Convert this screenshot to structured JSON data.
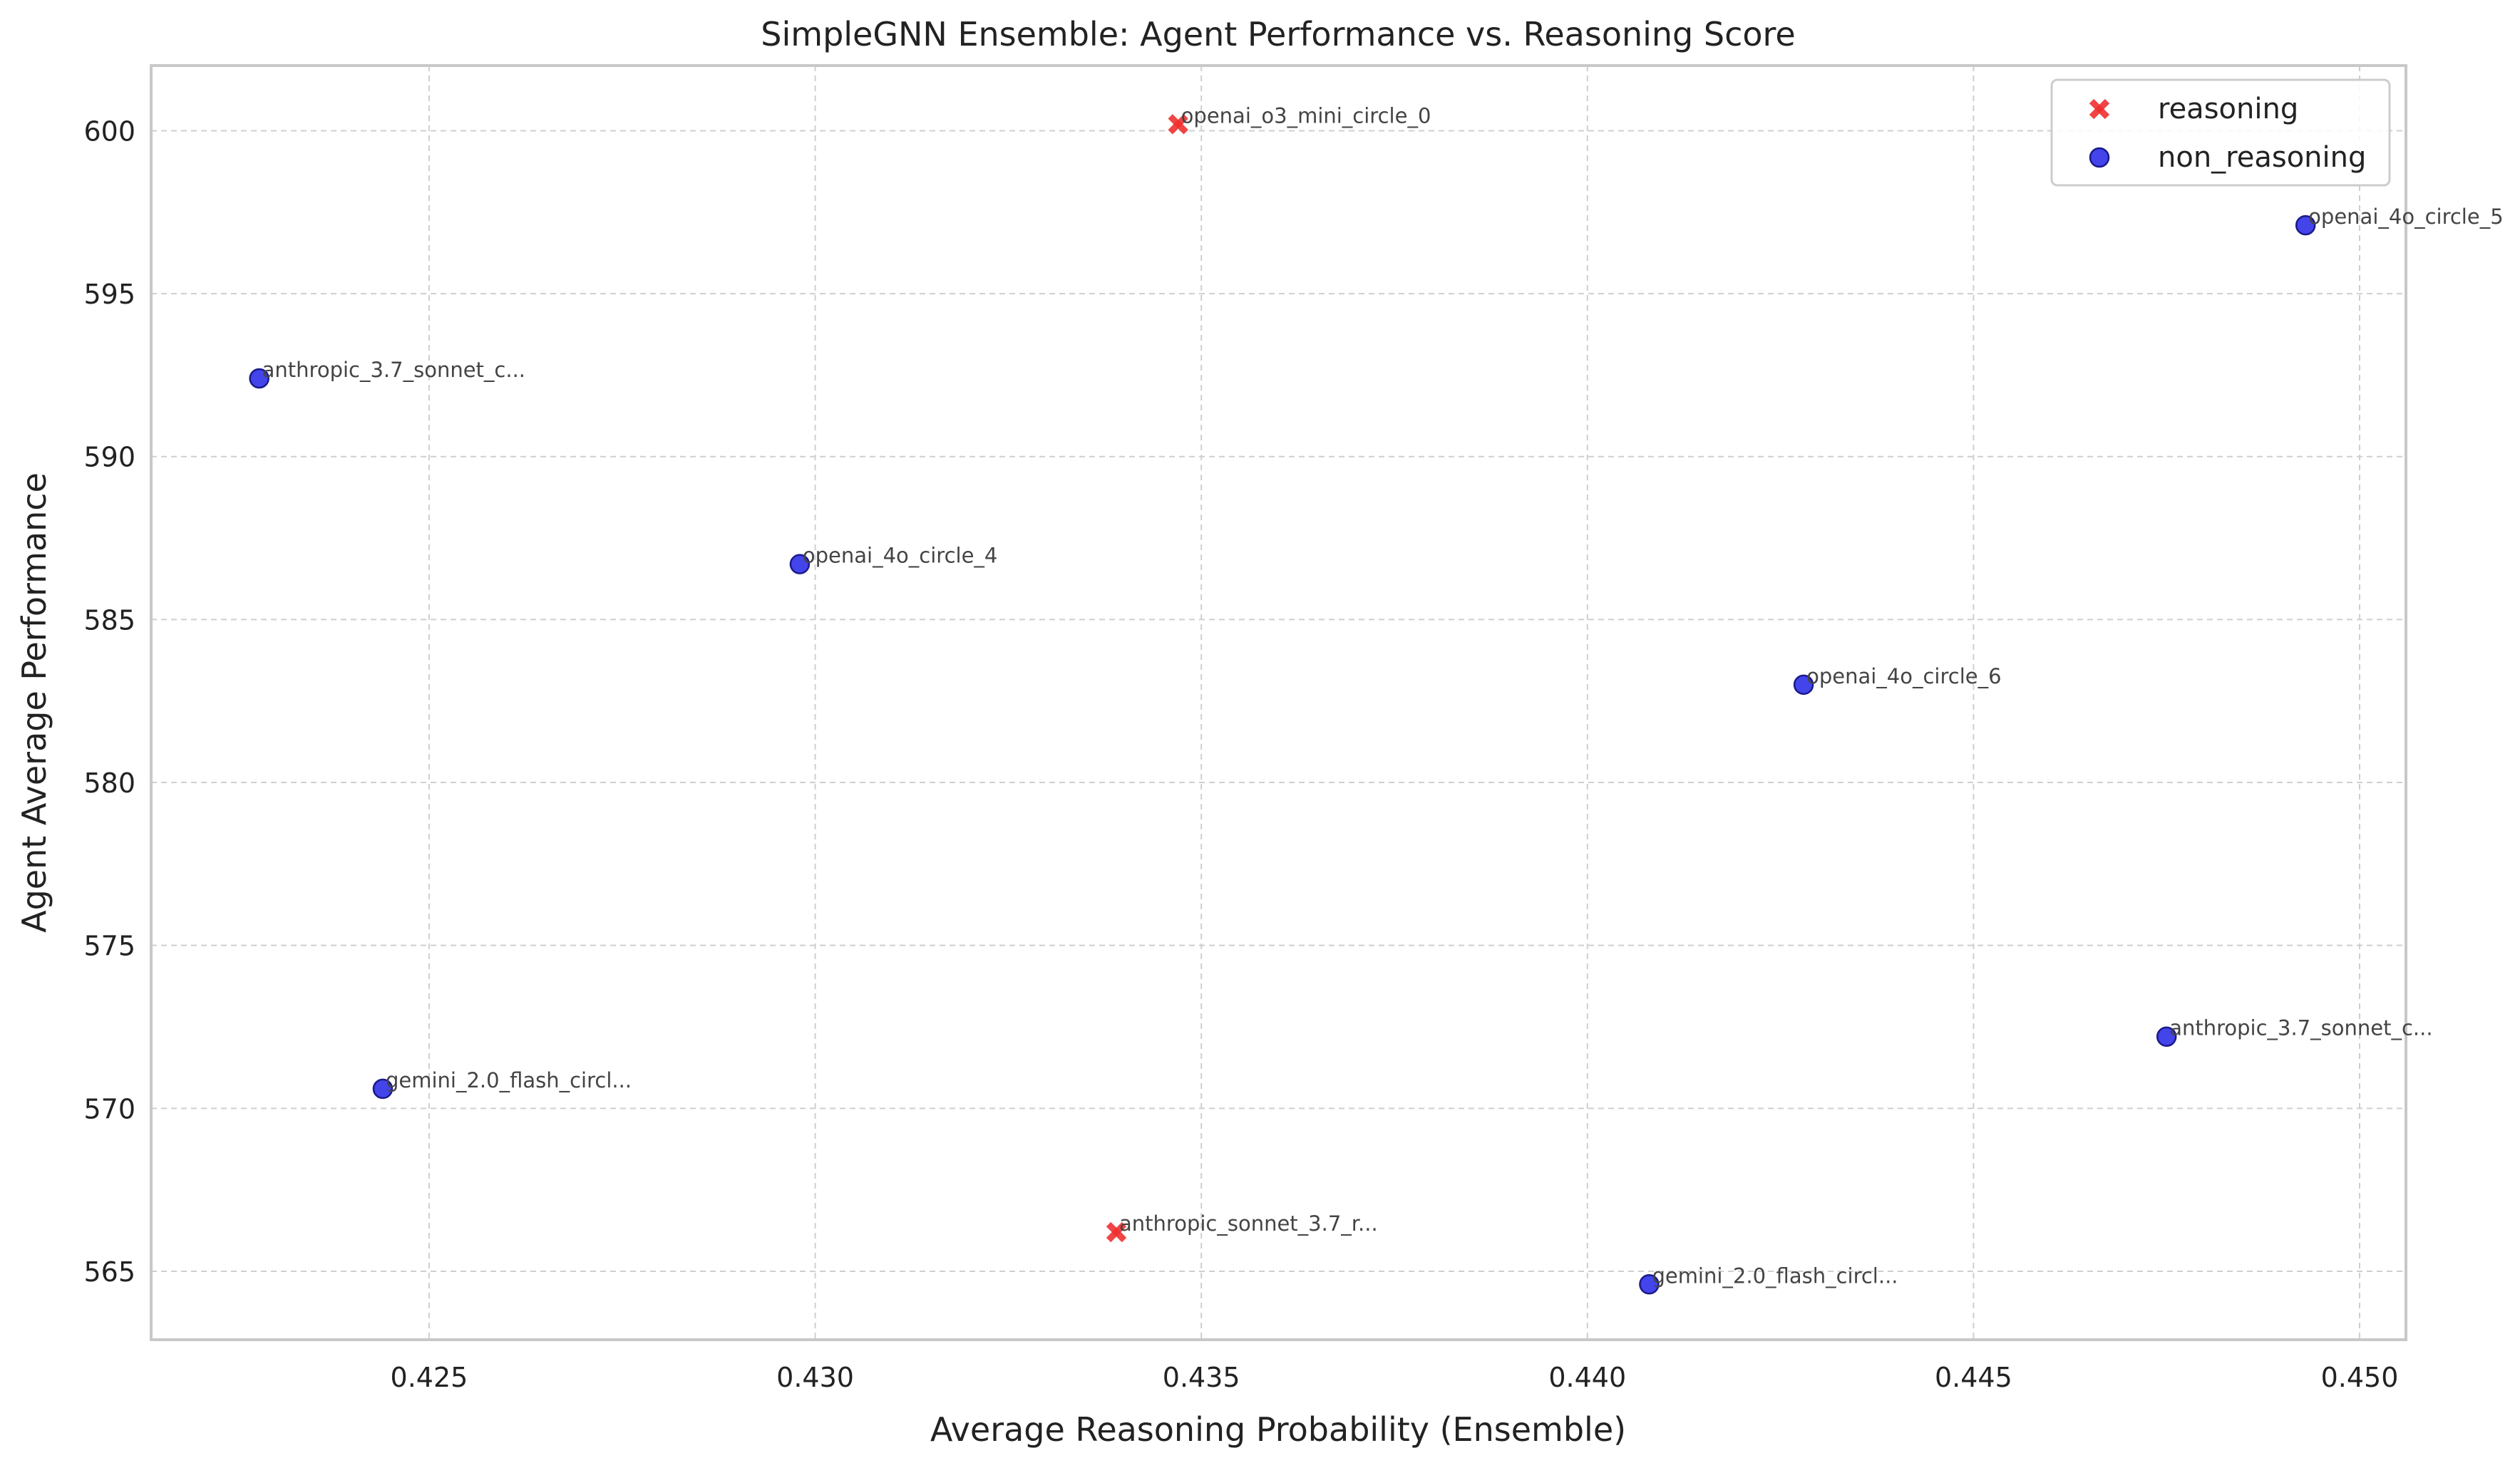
{
  "chart_data": {
    "type": "scatter",
    "title": "SimpleGNN Ensemble: Agent Performance vs. Reasoning Score",
    "xlabel": "Average Reasoning Probability (Ensemble)",
    "ylabel": "Agent Average Performance",
    "xlim": [
      0.4214,
      0.4506
    ],
    "ylim": [
      562.9,
      602.0
    ],
    "xticks": [
      0.425,
      0.43,
      0.435,
      0.44,
      0.445,
      0.45
    ],
    "xtick_labels": [
      "0.425",
      "0.430",
      "0.435",
      "0.440",
      "0.445",
      "0.450"
    ],
    "yticks": [
      565,
      570,
      575,
      580,
      585,
      590,
      595,
      600
    ],
    "ytick_labels": [
      "565",
      "570",
      "575",
      "580",
      "585",
      "590",
      "595",
      "600"
    ],
    "grid": true,
    "legend_position": "top-right",
    "series": [
      {
        "name": "reasoning",
        "marker": "x",
        "color": "#f03030",
        "points": [
          {
            "x": 0.4347,
            "y": 600.2,
            "label": "openai_o3_mini_circle_0"
          },
          {
            "x": 0.4339,
            "y": 566.2,
            "label": "anthropic_sonnet_3.7_r..."
          }
        ]
      },
      {
        "name": "non_reasoning",
        "marker": "o",
        "color": "#2323e8",
        "points": [
          {
            "x": 0.4493,
            "y": 597.1,
            "label": "openai_4o_circle_5"
          },
          {
            "x": 0.4228,
            "y": 592.4,
            "label": "anthropic_3.7_sonnet_c..."
          },
          {
            "x": 0.4298,
            "y": 586.7,
            "label": "openai_4o_circle_4"
          },
          {
            "x": 0.4428,
            "y": 583.0,
            "label": "openai_4o_circle_6"
          },
          {
            "x": 0.4475,
            "y": 572.2,
            "label": "anthropic_3.7_sonnet_c..."
          },
          {
            "x": 0.4244,
            "y": 570.6,
            "label": "gemini_2.0_flash_circl..."
          },
          {
            "x": 0.4408,
            "y": 564.6,
            "label": "gemini_2.0_flash_circl..."
          }
        ]
      }
    ]
  }
}
